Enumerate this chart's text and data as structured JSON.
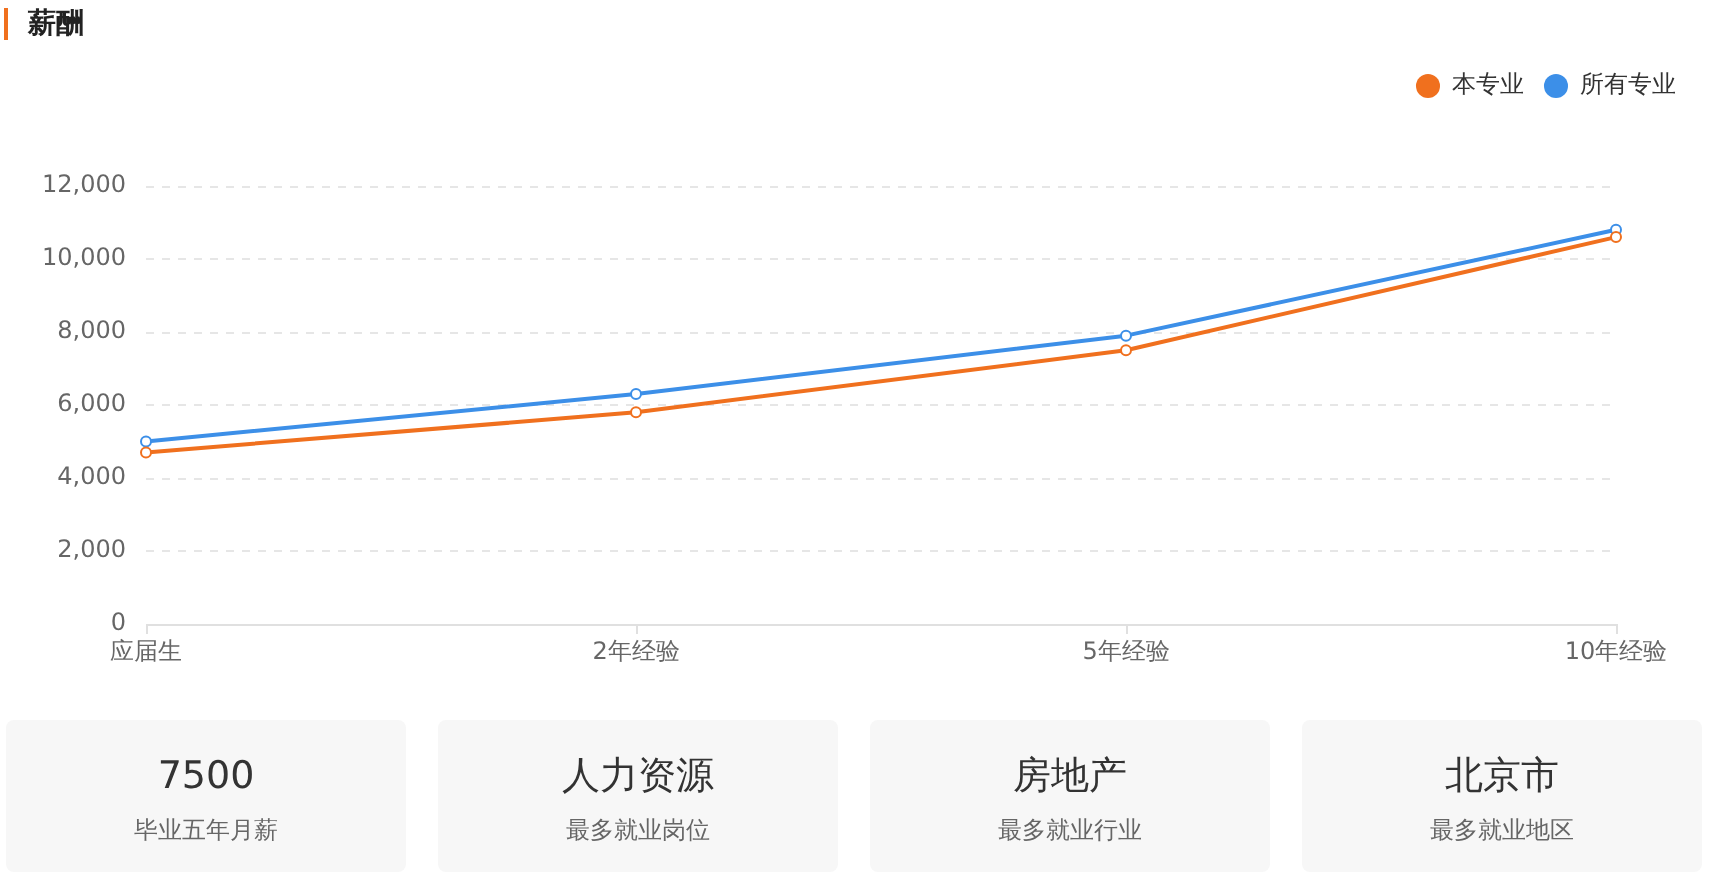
{
  "chart_data": [
    {
      "type": "line",
      "title": "薪酬",
      "categories": [
        "应届生",
        "2年经验",
        "5年经验",
        "10年经验"
      ],
      "series": [
        {
          "name": "本专业",
          "color": "#f0701e",
          "values": [
            4700,
            5800,
            7500,
            10600
          ]
        },
        {
          "name": "所有专业",
          "color": "#3c8fe8",
          "values": [
            5000,
            6300,
            7900,
            10800
          ]
        }
      ],
      "ylim": [
        0,
        12000
      ],
      "yticks": [
        0,
        {
          "value": 2000,
          "label": "2,000"
        },
        {
          "value": 4000,
          "label": "4,000"
        },
        {
          "value": 6000,
          "label": "6,000"
        },
        {
          "value": 8000,
          "label": "8,000"
        },
        {
          "value": 10000,
          "label": "10,000"
        },
        {
          "value": 12000,
          "label": "12,000"
        }
      ],
      "grid": "y",
      "legend": "top right",
      "marker": "circle"
    },
    {
      "type": "other",
      "title": "7500",
      "subtitle": "毕业五年月薪"
    },
    {
      "type": "other",
      "title": "人力资源",
      "subtitle": "最多就业岗位"
    },
    {
      "type": "other",
      "title": "房地产",
      "subtitle": "最多就业行业"
    },
    {
      "type": "other",
      "title": "北京市",
      "subtitle": "最多就业地区"
    }
  ]
}
